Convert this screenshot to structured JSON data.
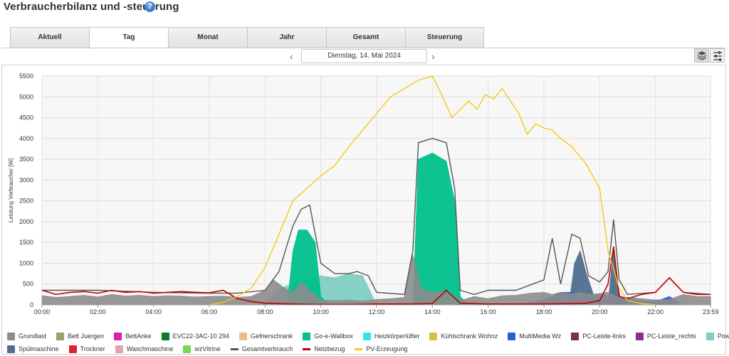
{
  "page": {
    "title": "Verbraucherbilanz und -steuerung",
    "help_icon": "question-icon"
  },
  "tabs": [
    {
      "label": "Aktuell",
      "active": false
    },
    {
      "label": "Tag",
      "active": true
    },
    {
      "label": "Monat",
      "active": false
    },
    {
      "label": "Jahr",
      "active": false
    },
    {
      "label": "Gesamt",
      "active": false
    },
    {
      "label": "Steuerung",
      "active": false
    }
  ],
  "date_nav": {
    "date": "Dienstag, 14. Mai 2024",
    "prev_icon": "chevron-left-icon",
    "next_icon": "chevron-right-icon"
  },
  "view_buttons": [
    {
      "icon": "layers-icon",
      "selected": true
    },
    {
      "icon": "sliders-icon",
      "selected": false
    }
  ],
  "chart_data": {
    "type": "area",
    "ylabel": "Leistung Verbraucher [W]",
    "ylim": [
      0,
      5500
    ],
    "yticks": [
      0,
      500,
      1000,
      1500,
      2000,
      2500,
      3000,
      3500,
      4000,
      4500,
      5000,
      5500
    ],
    "xlim": [
      0,
      24
    ],
    "xticks": [
      "00:00",
      "02:00",
      "04:00",
      "06:00",
      "08:00",
      "10:00",
      "12:00",
      "14:00",
      "16:00",
      "18:00",
      "20:00",
      "22:00",
      "23:59"
    ],
    "grid": true,
    "series_colors": {
      "Grundlast": "#8c8c8c",
      "Go-e-Wallbox": "#00c08b",
      "Powerstation": "#7fcdc3",
      "MultiMedia Wz": "#2c5fd6",
      "Spülmaschine": "#4f6e8f",
      "PC-Leiste-links": "#7a3442",
      "BettAnke": "#d81fb0",
      "Gesamtverbrauch": "#555555",
      "Netzbezug": "#c00000",
      "PV-Erzeugung": "#f2cc16"
    },
    "series": [
      {
        "name": "Grundlast",
        "kind": "area",
        "x": [
          0,
          0.5,
          1,
          1.5,
          2,
          2.5,
          3,
          3.5,
          4,
          4.5,
          5,
          5.5,
          6,
          6.5,
          7,
          7.5,
          8,
          8.3,
          8.7,
          9,
          9.3,
          9.6,
          10,
          10.5,
          11,
          11.5,
          12,
          12.5,
          13,
          13.3,
          13.6,
          14,
          14.5,
          15,
          15.5,
          16,
          16.5,
          17,
          17.5,
          18,
          18.3,
          18.6,
          19,
          19.3,
          19.6,
          20,
          20.3,
          20.6,
          21,
          21.5,
          22,
          22.5,
          23,
          23.5,
          23.98
        ],
        "values": [
          220,
          180,
          200,
          230,
          190,
          250,
          210,
          230,
          200,
          220,
          210,
          190,
          200,
          210,
          180,
          200,
          350,
          600,
          400,
          300,
          550,
          350,
          120,
          100,
          110,
          90,
          130,
          150,
          180,
          1200,
          400,
          300,
          320,
          100,
          200,
          150,
          220,
          230,
          280,
          300,
          250,
          300,
          260,
          300,
          250,
          270,
          300,
          200,
          180,
          150,
          120,
          130,
          250,
          200,
          200
        ]
      },
      {
        "name": "Go-e-Wallbox",
        "kind": "area",
        "x": [
          8.8,
          9,
          9.2,
          9.5,
          9.8,
          10,
          10.3,
          13.3,
          13.5,
          14,
          14.5,
          14.8,
          15,
          15.3
        ],
        "values": [
          0,
          1300,
          1800,
          1800,
          1500,
          200,
          0,
          0,
          3500,
          3650,
          3450,
          2500,
          200,
          0
        ]
      },
      {
        "name": "Powerstation",
        "kind": "area",
        "x": [
          8,
          8.5,
          9,
          9.5,
          10,
          10.5,
          11,
          11.5,
          12
        ],
        "values": [
          0,
          400,
          500,
          600,
          700,
          650,
          750,
          700,
          0
        ]
      },
      {
        "name": "MultiMedia Wz",
        "kind": "area",
        "x": [
          17,
          17.5,
          18,
          18.3,
          18.6,
          19,
          19.3,
          19.6,
          20,
          20.5,
          21,
          21.5,
          22,
          22.5,
          23,
          23.5
        ],
        "values": [
          0,
          60,
          120,
          200,
          300,
          300,
          250,
          200,
          250,
          200,
          150,
          100,
          80,
          200,
          0,
          0
        ]
      },
      {
        "name": "Spülmaschine",
        "kind": "area",
        "x": [
          18.9,
          19.1,
          19.3,
          19.5,
          19.8,
          20.3,
          20.5,
          20.6,
          20.8,
          21
        ],
        "values": [
          0,
          1000,
          1300,
          800,
          200,
          0,
          1400,
          600,
          0,
          0
        ]
      },
      {
        "name": "PC-Leiste-links",
        "kind": "area",
        "x": [
          17.5,
          18,
          18.3,
          18.6,
          19,
          19.5,
          20,
          20.5,
          21
        ],
        "values": [
          0,
          30,
          60,
          50,
          40,
          30,
          40,
          30,
          0
        ]
      },
      {
        "name": "Gesamtverbrauch",
        "kind": "line",
        "x": [
          0,
          2,
          4,
          6,
          7,
          8,
          8.5,
          9,
          9.3,
          9.6,
          10,
          10.5,
          11,
          11.3,
          11.7,
          12,
          13,
          13.3,
          13.5,
          14,
          14.5,
          14.8,
          15,
          15.5,
          16,
          17,
          18,
          18.3,
          18.6,
          19,
          19.3,
          19.6,
          20,
          20.3,
          20.5,
          20.7,
          21,
          22,
          22.5,
          23,
          23.98
        ],
        "values": [
          350,
          350,
          300,
          280,
          280,
          350,
          800,
          1900,
          2300,
          2400,
          1000,
          750,
          750,
          800,
          700,
          300,
          250,
          1300,
          3900,
          4000,
          3900,
          2800,
          350,
          250,
          350,
          350,
          600,
          1600,
          500,
          1700,
          1600,
          700,
          550,
          800,
          2050,
          600,
          250,
          300,
          650,
          300,
          250
        ]
      },
      {
        "name": "Netzbezug",
        "kind": "line",
        "x": [
          0,
          0.5,
          1,
          1.5,
          2,
          2.5,
          3,
          3.5,
          4,
          4.5,
          5,
          5.5,
          6,
          6.5,
          7,
          7.5,
          8,
          9,
          10,
          11,
          12,
          13,
          14,
          14.5,
          15,
          16,
          17,
          18,
          19,
          19.5,
          20,
          20.3,
          20.5,
          20.7,
          21,
          21.5,
          22,
          22.5,
          23,
          23.5,
          23.98
        ],
        "values": [
          350,
          250,
          300,
          320,
          280,
          350,
          300,
          320,
          280,
          300,
          320,
          300,
          290,
          350,
          150,
          80,
          40,
          20,
          10,
          10,
          20,
          20,
          30,
          350,
          40,
          20,
          20,
          20,
          30,
          40,
          100,
          500,
          1400,
          200,
          150,
          250,
          300,
          650,
          300,
          250,
          250
        ]
      },
      {
        "name": "PV-Erzeugung",
        "kind": "line",
        "x": [
          6,
          6.5,
          7,
          7.5,
          8,
          8.5,
          9,
          9.5,
          10,
          10.5,
          11,
          11.5,
          12,
          12.5,
          13,
          13.5,
          14,
          14.3,
          14.7,
          15,
          15.3,
          15.6,
          15.9,
          16.2,
          16.5,
          16.8,
          17.1,
          17.4,
          17.7,
          18,
          18.3,
          18.6,
          19,
          19.5,
          20,
          20.3,
          20.7,
          21,
          21.5,
          22
        ],
        "values": [
          0,
          60,
          200,
          400,
          900,
          1700,
          2500,
          2800,
          3100,
          3350,
          3800,
          4200,
          4600,
          5000,
          5200,
          5400,
          5500,
          5100,
          4500,
          4700,
          4900,
          4700,
          5050,
          4950,
          5200,
          4900,
          4600,
          4100,
          4350,
          4250,
          4200,
          4000,
          3800,
          3400,
          2800,
          1300,
          400,
          100,
          30,
          0
        ]
      }
    ]
  },
  "legend": [
    [
      {
        "label": "Grundlast",
        "color": "#8c8c8c",
        "kind": "area"
      },
      {
        "label": "Bett Juergen",
        "color": "#a39d6d",
        "kind": "area"
      },
      {
        "label": "BettAnke",
        "color": "#d81fb0",
        "kind": "area"
      },
      {
        "label": "EVC22-3AC-10 294",
        "color": "#0b7a2a",
        "kind": "area"
      },
      {
        "label": "Gefrierschrank",
        "color": "#f0bb8a",
        "kind": "area"
      },
      {
        "label": "Go-e-Wallbox",
        "color": "#00c08b",
        "kind": "area"
      },
      {
        "label": "Heizkörperlüfter",
        "color": "#2ee8e8",
        "kind": "area"
      },
      {
        "label": "Kühlschrank Wohnz",
        "color": "#d9c13c",
        "kind": "area"
      },
      {
        "label": "MultiMedia Wz",
        "color": "#2c5fd6",
        "kind": "area"
      },
      {
        "label": "PC-Leiste-links",
        "color": "#7a3442",
        "kind": "area"
      },
      {
        "label": "PC-Leiste_rechts",
        "color": "#8b2f8c",
        "kind": "area"
      },
      {
        "label": "Powerstation",
        "color": "#7fcdc3",
        "kind": "area"
      }
    ],
    [
      {
        "label": "Spülmaschine",
        "color": "#4f6e8f",
        "kind": "area"
      },
      {
        "label": "Trockner",
        "color": "#e0213a",
        "kind": "area"
      },
      {
        "label": "Waschmaschine",
        "color": "#e3a3b3",
        "kind": "area"
      },
      {
        "label": "wzVitrine",
        "color": "#7bd652",
        "kind": "area"
      },
      {
        "label": "Gesamtverbrauch",
        "color": "#555555",
        "kind": "line"
      },
      {
        "label": "Netzbezug",
        "color": "#c00000",
        "kind": "line"
      },
      {
        "label": "PV-Erzeugung",
        "color": "#f2cc16",
        "kind": "line"
      }
    ]
  ]
}
